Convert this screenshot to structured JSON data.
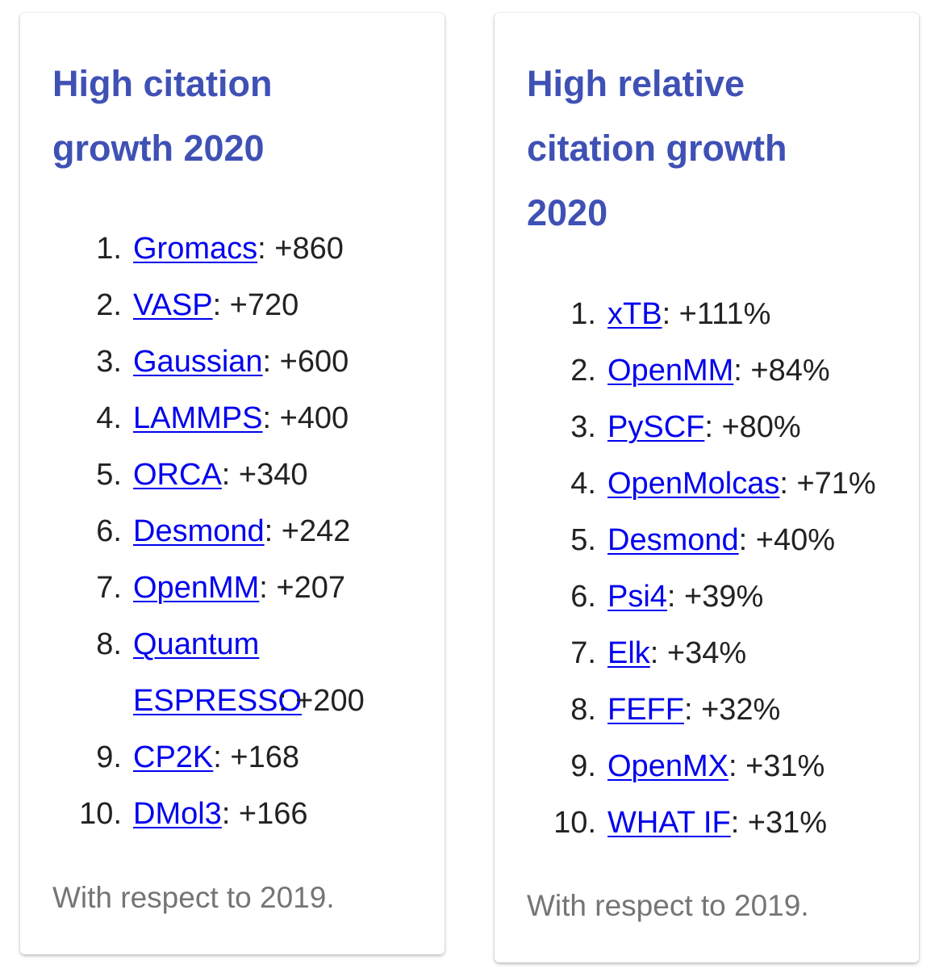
{
  "cards": [
    {
      "title_line1": "High citation",
      "title_line2": "growth 2020",
      "items": [
        {
          "num": "1.",
          "name": "Gromacs",
          "value": ": +860"
        },
        {
          "num": "2.",
          "name": "VASP",
          "value": ": +720"
        },
        {
          "num": "3.",
          "name": "Gaussian",
          "value": ": +600"
        },
        {
          "num": "4.",
          "name": "LAMMPS",
          "value": ": +400"
        },
        {
          "num": "5.",
          "name": "ORCA",
          "value": ": +340"
        },
        {
          "num": "6.",
          "name": "Desmond",
          "value": ": +242"
        },
        {
          "num": "7.",
          "name": "OpenMM",
          "value": ": +207"
        },
        {
          "num": "8.",
          "name": "Quantum ESPRESSO",
          "value": ": +200"
        },
        {
          "num": "9.",
          "name": "CP2K",
          "value": ": +168"
        },
        {
          "num": "10.",
          "name": "DMol3",
          "value": ": +166"
        }
      ],
      "footnote": "With respect to 2019."
    },
    {
      "title_line1": "High relative",
      "title_line2": "citation growth",
      "title_line3": "2020",
      "items": [
        {
          "num": "1.",
          "name": "xTB",
          "value": ": +111%"
        },
        {
          "num": "2.",
          "name": "OpenMM",
          "value": ": +84%"
        },
        {
          "num": "3.",
          "name": "PySCF",
          "value": ": +80%"
        },
        {
          "num": "4.",
          "name": "OpenMolcas",
          "value": ": +71%"
        },
        {
          "num": "5.",
          "name": "Desmond",
          "value": ": +40%"
        },
        {
          "num": "6.",
          "name": "Psi4",
          "value": ": +39%"
        },
        {
          "num": "7.",
          "name": "Elk",
          "value": ": +34%"
        },
        {
          "num": "8.",
          "name": "FEFF",
          "value": ": +32%"
        },
        {
          "num": "9.",
          "name": "OpenMX",
          "value": ": +31%"
        },
        {
          "num": "10.",
          "name": "WHAT IF",
          "value": ": +31%"
        }
      ],
      "footnote": "With respect to 2019."
    }
  ],
  "colors": {
    "title": "#3f51b5",
    "link": "#0000ee",
    "text": "#222222",
    "footnote": "#757575"
  }
}
